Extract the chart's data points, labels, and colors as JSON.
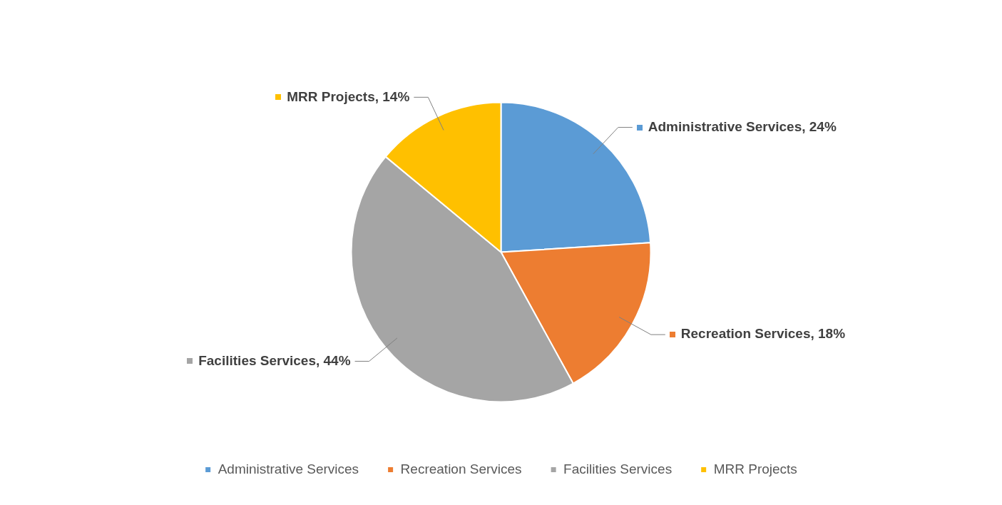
{
  "chart_data": {
    "type": "pie",
    "categories": [
      "Administrative Services",
      "Recreation Services",
      "Facilities Services",
      "MRR Projects"
    ],
    "values": [
      24,
      18,
      44,
      14
    ],
    "value_labels": [
      "Administrative Services, 24%",
      "Recreation Services, 18%",
      "Facilities Services, 44%",
      "MRR Projects, 14%"
    ],
    "colors": [
      "#5b9bd5",
      "#ed7d31",
      "#a5a5a5",
      "#ffc000"
    ],
    "legend": "bottom"
  }
}
